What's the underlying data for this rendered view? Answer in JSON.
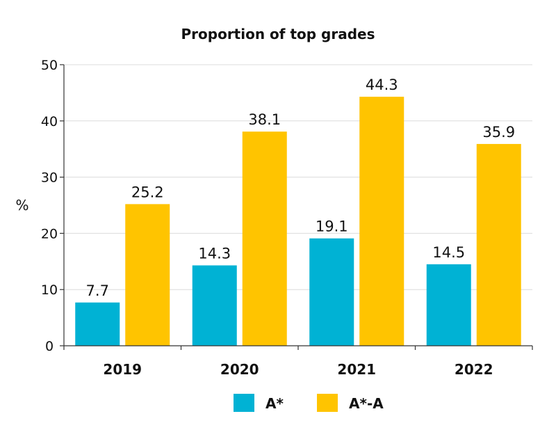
{
  "chart_data": {
    "type": "bar",
    "title": "Proportion of top grades",
    "xlabel": "",
    "ylabel": "%",
    "ylim": [
      0,
      50
    ],
    "yticks": [
      0,
      10,
      20,
      30,
      40,
      50
    ],
    "grid": true,
    "legend_position": "bottom",
    "categories": [
      "2019",
      "2020",
      "2021",
      "2022"
    ],
    "series": [
      {
        "name": "A*",
        "color": "#00B2D4",
        "values": [
          7.7,
          14.3,
          19.1,
          14.5
        ]
      },
      {
        "name": "A*-A",
        "color": "#FFC400",
        "values": [
          25.2,
          38.1,
          44.3,
          35.9
        ]
      }
    ]
  }
}
